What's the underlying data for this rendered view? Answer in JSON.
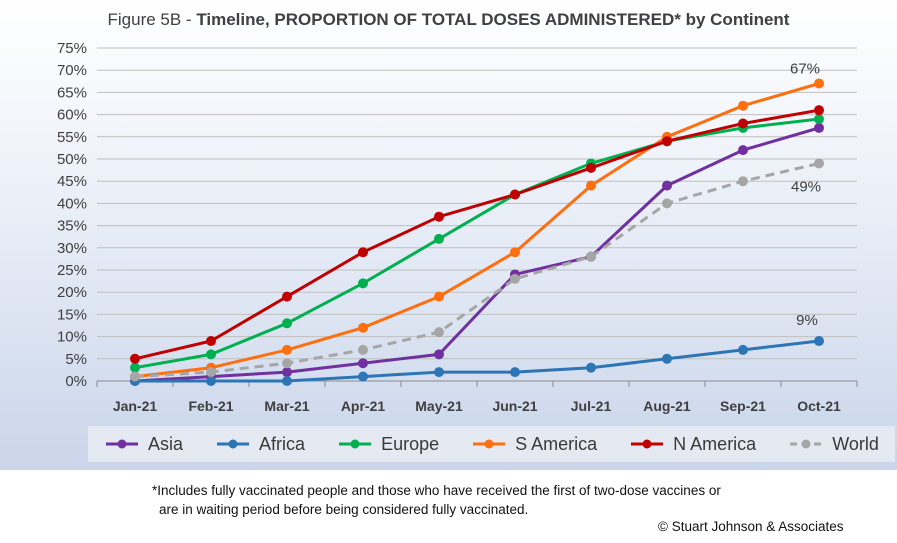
{
  "chart_data": {
    "type": "line",
    "title_prefix": "Figure 5B - ",
    "title_main": "Timeline, PROPORTION OF TOTAL DOSES ADMINISTERED* by Continent",
    "categories": [
      "Jan-21",
      "Feb-21",
      "Mar-21",
      "Apr-21",
      "May-21",
      "Jun-21",
      "Jul-21",
      "Aug-21",
      "Sep-21",
      "Oct-21"
    ],
    "ylim": [
      0,
      75
    ],
    "y_ticks": [
      "0%",
      "5%",
      "10%",
      "15%",
      "20%",
      "25%",
      "30%",
      "35%",
      "40%",
      "45%",
      "50%",
      "55%",
      "60%",
      "65%",
      "70%",
      "75%"
    ],
    "grid": true,
    "legend_position": "bottom",
    "series": [
      {
        "name": "Asia",
        "color": "#7030a0",
        "dashed": false,
        "values": [
          0,
          1,
          2,
          4,
          6,
          24,
          28,
          44,
          52,
          57
        ]
      },
      {
        "name": "Africa",
        "color": "#2e75b6",
        "dashed": false,
        "values": [
          0,
          0,
          0,
          1,
          2,
          2,
          3,
          5,
          7,
          9
        ]
      },
      {
        "name": "Europe",
        "color": "#00b050",
        "dashed": false,
        "values": [
          3,
          6,
          13,
          22,
          32,
          42,
          49,
          54,
          57,
          59
        ]
      },
      {
        "name": "S America",
        "color": "#ff6f0f",
        "dashed": false,
        "values": [
          1,
          3,
          7,
          12,
          19,
          29,
          44,
          55,
          62,
          67
        ]
      },
      {
        "name": "N America",
        "color": "#c00000",
        "dashed": false,
        "values": [
          5,
          9,
          19,
          29,
          37,
          42,
          48,
          54,
          58,
          61
        ]
      },
      {
        "name": "World",
        "color": "#a6a6a6",
        "dashed": true,
        "values": [
          1,
          2,
          4,
          7,
          11,
          23,
          28,
          40,
          45,
          49
        ]
      }
    ],
    "annotations": [
      {
        "text": "67%",
        "series": "S America",
        "index": 9
      },
      {
        "text": "49%",
        "series": "World",
        "index": 9
      },
      {
        "text": "9%",
        "series": "Africa",
        "index": 9
      }
    ]
  },
  "footnote_line1": "*Includes fully vaccinated people and those who have received the first of two-dose vaccines or",
  "footnote_line2": "are in waiting period before being considered fully vaccinated.",
  "copyright": "© Stuart Johnson & Associates"
}
